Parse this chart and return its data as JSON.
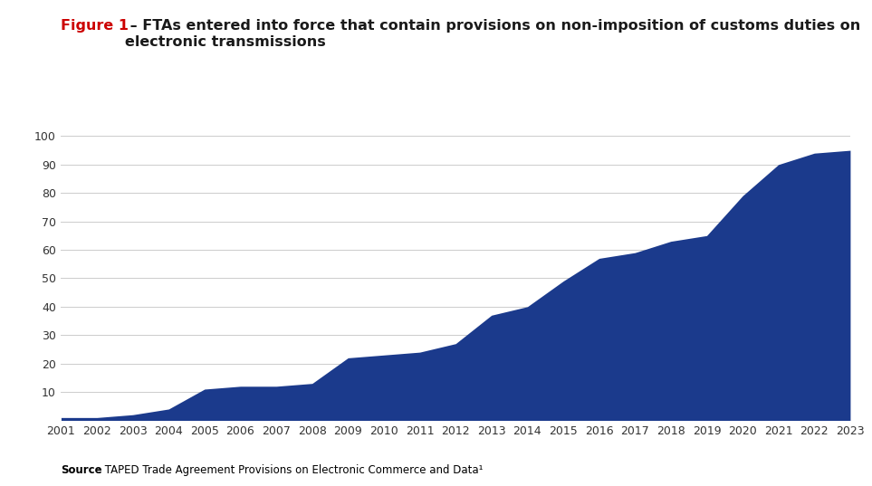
{
  "years": [
    2001,
    2002,
    2003,
    2004,
    2005,
    2006,
    2007,
    2008,
    2009,
    2010,
    2011,
    2012,
    2013,
    2014,
    2015,
    2016,
    2017,
    2018,
    2019,
    2020,
    2021,
    2022,
    2023
  ],
  "values": [
    1,
    1,
    2,
    4,
    11,
    12,
    12,
    13,
    22,
    23,
    24,
    27,
    37,
    40,
    49,
    57,
    59,
    63,
    65,
    79,
    90,
    94,
    95
  ],
  "fill_color": "#1b3a8c",
  "background_color": "#ffffff",
  "title_figure": "Figure 1",
  "title_rest": " – FTAs entered into force that contain provisions on non-imposition of customs duties on\nelectronic transmissions",
  "title_color_figure": "#cc0000",
  "title_color_rest": "#1a1a1a",
  "ylim": [
    0,
    100
  ],
  "yticks": [
    0,
    10,
    20,
    30,
    40,
    50,
    60,
    70,
    80,
    90,
    100
  ],
  "grid_color": "#cccccc",
  "source_bold": "Source",
  "source_rest": ": TAPED Trade Agreement Provisions on Electronic Commerce and Data¹",
  "source_fontsize": 8.5,
  "title_fontsize": 11.5,
  "tick_fontsize": 9
}
